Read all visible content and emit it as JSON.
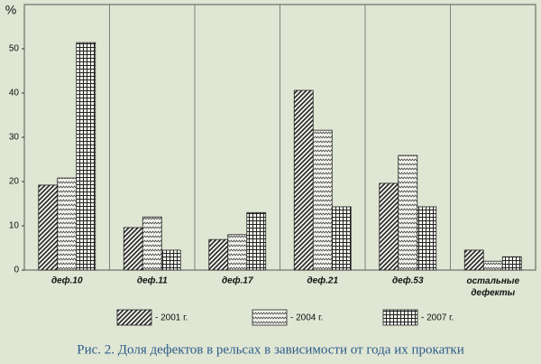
{
  "chart_data": {
    "type": "bar",
    "y_label": "%",
    "caption": "Рис. 2. Доля дефектов в рельсах в зависимости от года их прокатки",
    "categories": [
      "деф.10",
      "деф.11",
      "деф.17",
      "деф.21",
      "деф.53",
      "остальные дефекты"
    ],
    "series": [
      {
        "name": "- 2001 г.",
        "color": "#222222",
        "pattern": "diagonal",
        "values": [
          19.2,
          9.6,
          6.9,
          40.6,
          19.6,
          4.5
        ]
      },
      {
        "name": "- 2004 г.",
        "color": "#222222",
        "pattern": "zigzag",
        "values": [
          20.8,
          12,
          8,
          31.6,
          25.9,
          2
        ]
      },
      {
        "name": "- 2007 г.",
        "color": "#222222",
        "pattern": "grid",
        "values": [
          51.4,
          4.5,
          13,
          14.3,
          14.3,
          3
        ]
      }
    ],
    "ylim": [
      0,
      60
    ],
    "yticks": [
      0,
      10,
      20,
      30,
      40,
      50
    ],
    "grid": true
  }
}
